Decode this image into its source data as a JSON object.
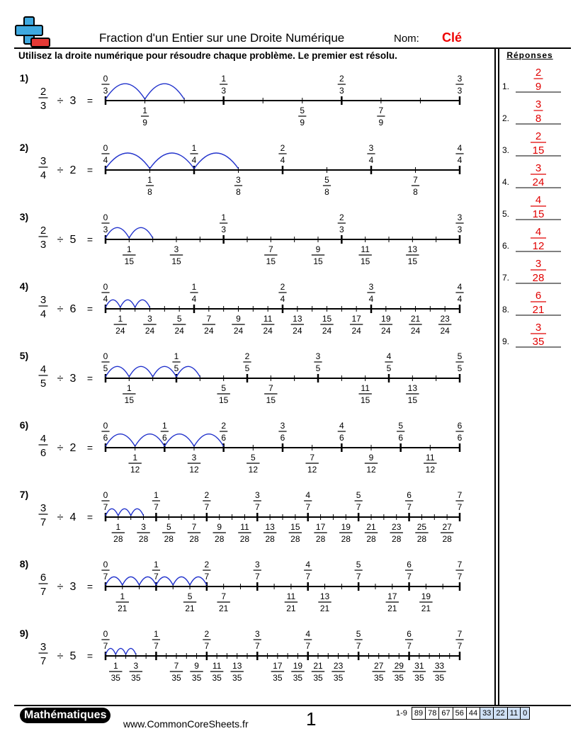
{
  "header": {
    "title": "Fraction d'un Entier sur une Droite Numérique",
    "nom_label": "Nom:",
    "nom_value": "Clé"
  },
  "instructions": "Utilisez la droite numérique pour résoudre chaque problème. Le premier est résolu.",
  "answers_title": "Réponses",
  "colors": {
    "accent_blue": "#2233cc",
    "answer_red": "#e00000",
    "logo_blue": "#3fa9e0",
    "logo_red": "#e53935"
  },
  "problems": [
    {
      "label": "1)",
      "num": "2",
      "den": "3",
      "div": "3",
      "symbols": {
        "div": "÷",
        "eq": "="
      },
      "answer_num": "2",
      "answer_den": "9",
      "answer_label": "1."
    },
    {
      "label": "2)",
      "num": "3",
      "den": "4",
      "div": "2",
      "symbols": {
        "div": "÷",
        "eq": "="
      },
      "answer_num": "3",
      "answer_den": "8",
      "answer_label": "2."
    },
    {
      "label": "3)",
      "num": "2",
      "den": "3",
      "div": "5",
      "symbols": {
        "div": "÷",
        "eq": "="
      },
      "answer_num": "2",
      "answer_den": "15",
      "answer_label": "3."
    },
    {
      "label": "4)",
      "num": "3",
      "den": "4",
      "div": "6",
      "symbols": {
        "div": "÷",
        "eq": "="
      },
      "answer_num": "3",
      "answer_den": "24",
      "answer_label": "4."
    },
    {
      "label": "5)",
      "num": "4",
      "den": "5",
      "div": "3",
      "symbols": {
        "div": "÷",
        "eq": "="
      },
      "answer_num": "4",
      "answer_den": "15",
      "answer_label": "5."
    },
    {
      "label": "6)",
      "num": "4",
      "den": "6",
      "div": "2",
      "symbols": {
        "div": "÷",
        "eq": "="
      },
      "answer_num": "4",
      "answer_den": "12",
      "answer_label": "6."
    },
    {
      "label": "7)",
      "num": "3",
      "den": "7",
      "div": "4",
      "symbols": {
        "div": "÷",
        "eq": "="
      },
      "answer_num": "3",
      "answer_den": "28",
      "answer_label": "7."
    },
    {
      "label": "8)",
      "num": "6",
      "den": "7",
      "div": "3",
      "symbols": {
        "div": "÷",
        "eq": "="
      },
      "answer_num": "6",
      "answer_den": "21",
      "answer_label": "8."
    },
    {
      "label": "9)",
      "num": "3",
      "den": "7",
      "div": "5",
      "symbols": {
        "div": "÷",
        "eq": "="
      },
      "answer_num": "3",
      "answer_den": "35",
      "answer_label": "9."
    }
  ],
  "footer": {
    "brand": "Mathématiques",
    "url": "www.CommonCoreSheets.fr",
    "page": "1",
    "score_range": "1-9",
    "scores": [
      "89",
      "78",
      "67",
      "56",
      "44",
      "33",
      "22",
      "11",
      "0"
    ]
  }
}
